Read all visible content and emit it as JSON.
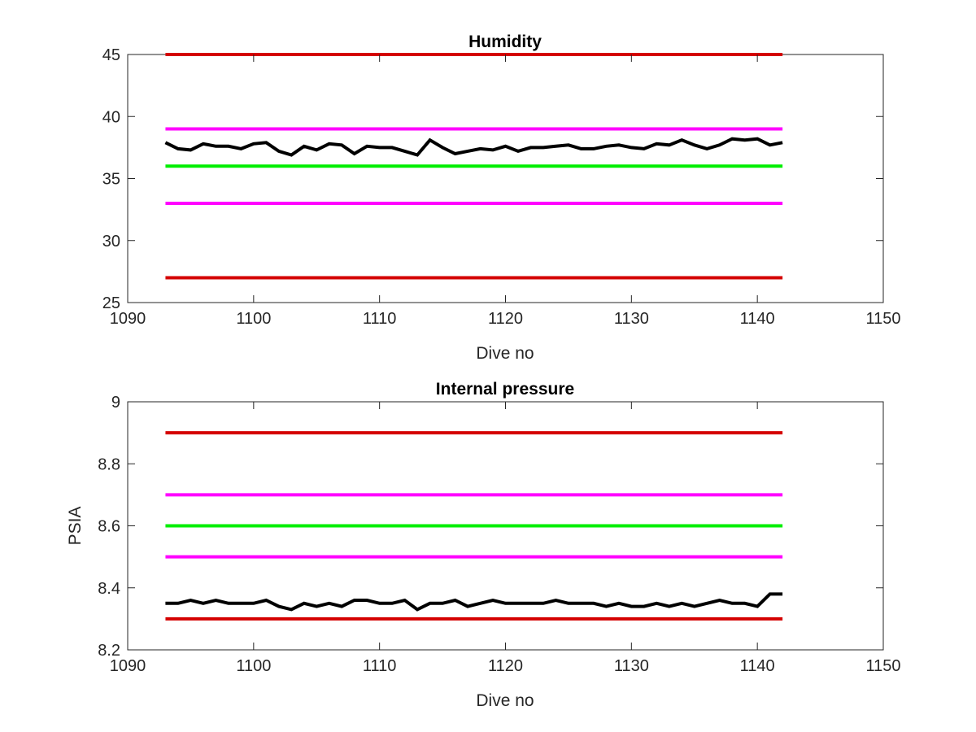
{
  "chart_data": [
    {
      "type": "line",
      "title": "Humidity",
      "xlabel": "Dive no",
      "ylabel": "",
      "xlim": [
        1090,
        1150
      ],
      "ylim": [
        25,
        45
      ],
      "xticks": [
        "1090",
        "1100",
        "1110",
        "1120",
        "1130",
        "1140",
        "1150"
      ],
      "yticks": [
        "25",
        "30",
        "35",
        "40",
        "45"
      ],
      "grid": false,
      "reference_lines": [
        {
          "color": "#d40000",
          "x": [
            1093,
            1142
          ],
          "y": 45
        },
        {
          "color": "#ff00ff",
          "x": [
            1093,
            1142
          ],
          "y": 39
        },
        {
          "color": "#00ee00",
          "x": [
            1093,
            1142
          ],
          "y": 36
        },
        {
          "color": "#ff00ff",
          "x": [
            1093,
            1142
          ],
          "y": 33
        },
        {
          "color": "#d40000",
          "x": [
            1093,
            1142
          ],
          "y": 27
        }
      ],
      "series": [
        {
          "color": "#000000",
          "x": [
            1093,
            1094,
            1095,
            1096,
            1097,
            1098,
            1099,
            1100,
            1101,
            1102,
            1103,
            1104,
            1105,
            1106,
            1107,
            1108,
            1109,
            1110,
            1111,
            1112,
            1113,
            1114,
            1115,
            1116,
            1117,
            1118,
            1119,
            1120,
            1121,
            1122,
            1123,
            1124,
            1125,
            1126,
            1127,
            1128,
            1129,
            1130,
            1131,
            1132,
            1133,
            1134,
            1135,
            1136,
            1137,
            1138,
            1139,
            1140,
            1141,
            1142
          ],
          "y": [
            37.9,
            37.4,
            37.3,
            37.8,
            37.6,
            37.6,
            37.4,
            37.8,
            37.9,
            37.2,
            36.9,
            37.6,
            37.3,
            37.8,
            37.7,
            37.0,
            37.6,
            37.5,
            37.5,
            37.2,
            36.9,
            38.1,
            37.5,
            37.0,
            37.2,
            37.4,
            37.3,
            37.6,
            37.2,
            37.5,
            37.5,
            37.6,
            37.7,
            37.4,
            37.4,
            37.6,
            37.7,
            37.5,
            37.4,
            37.8,
            37.7,
            38.1,
            37.7,
            37.4,
            37.7,
            38.2,
            38.1,
            38.2,
            37.7,
            37.9
          ]
        }
      ]
    },
    {
      "type": "line",
      "title": "Internal pressure",
      "xlabel": "Dive no",
      "ylabel": "PSIA",
      "xlim": [
        1090,
        1150
      ],
      "ylim": [
        8.2,
        9.0
      ],
      "xticks": [
        "1090",
        "1100",
        "1110",
        "1120",
        "1130",
        "1140",
        "1150"
      ],
      "yticks": [
        "8.2",
        "8.4",
        "8.6",
        "8.8",
        "9"
      ],
      "grid": false,
      "reference_lines": [
        {
          "color": "#d40000",
          "x": [
            1093,
            1142
          ],
          "y": 8.9
        },
        {
          "color": "#ff00ff",
          "x": [
            1093,
            1142
          ],
          "y": 8.7
        },
        {
          "color": "#00ee00",
          "x": [
            1093,
            1142
          ],
          "y": 8.6
        },
        {
          "color": "#ff00ff",
          "x": [
            1093,
            1142
          ],
          "y": 8.5
        },
        {
          "color": "#d40000",
          "x": [
            1093,
            1142
          ],
          "y": 8.3
        }
      ],
      "series": [
        {
          "color": "#000000",
          "x": [
            1093,
            1094,
            1095,
            1096,
            1097,
            1098,
            1099,
            1100,
            1101,
            1102,
            1103,
            1104,
            1105,
            1106,
            1107,
            1108,
            1109,
            1110,
            1111,
            1112,
            1113,
            1114,
            1115,
            1116,
            1117,
            1118,
            1119,
            1120,
            1121,
            1122,
            1123,
            1124,
            1125,
            1126,
            1127,
            1128,
            1129,
            1130,
            1131,
            1132,
            1133,
            1134,
            1135,
            1136,
            1137,
            1138,
            1139,
            1140,
            1141,
            1142
          ],
          "y": [
            8.35,
            8.35,
            8.36,
            8.35,
            8.36,
            8.35,
            8.35,
            8.35,
            8.36,
            8.34,
            8.33,
            8.35,
            8.34,
            8.35,
            8.34,
            8.36,
            8.36,
            8.35,
            8.35,
            8.36,
            8.33,
            8.35,
            8.35,
            8.36,
            8.34,
            8.35,
            8.36,
            8.35,
            8.35,
            8.35,
            8.35,
            8.36,
            8.35,
            8.35,
            8.35,
            8.34,
            8.35,
            8.34,
            8.34,
            8.35,
            8.34,
            8.35,
            8.34,
            8.35,
            8.36,
            8.35,
            8.35,
            8.34,
            8.38,
            8.38
          ]
        }
      ]
    }
  ]
}
